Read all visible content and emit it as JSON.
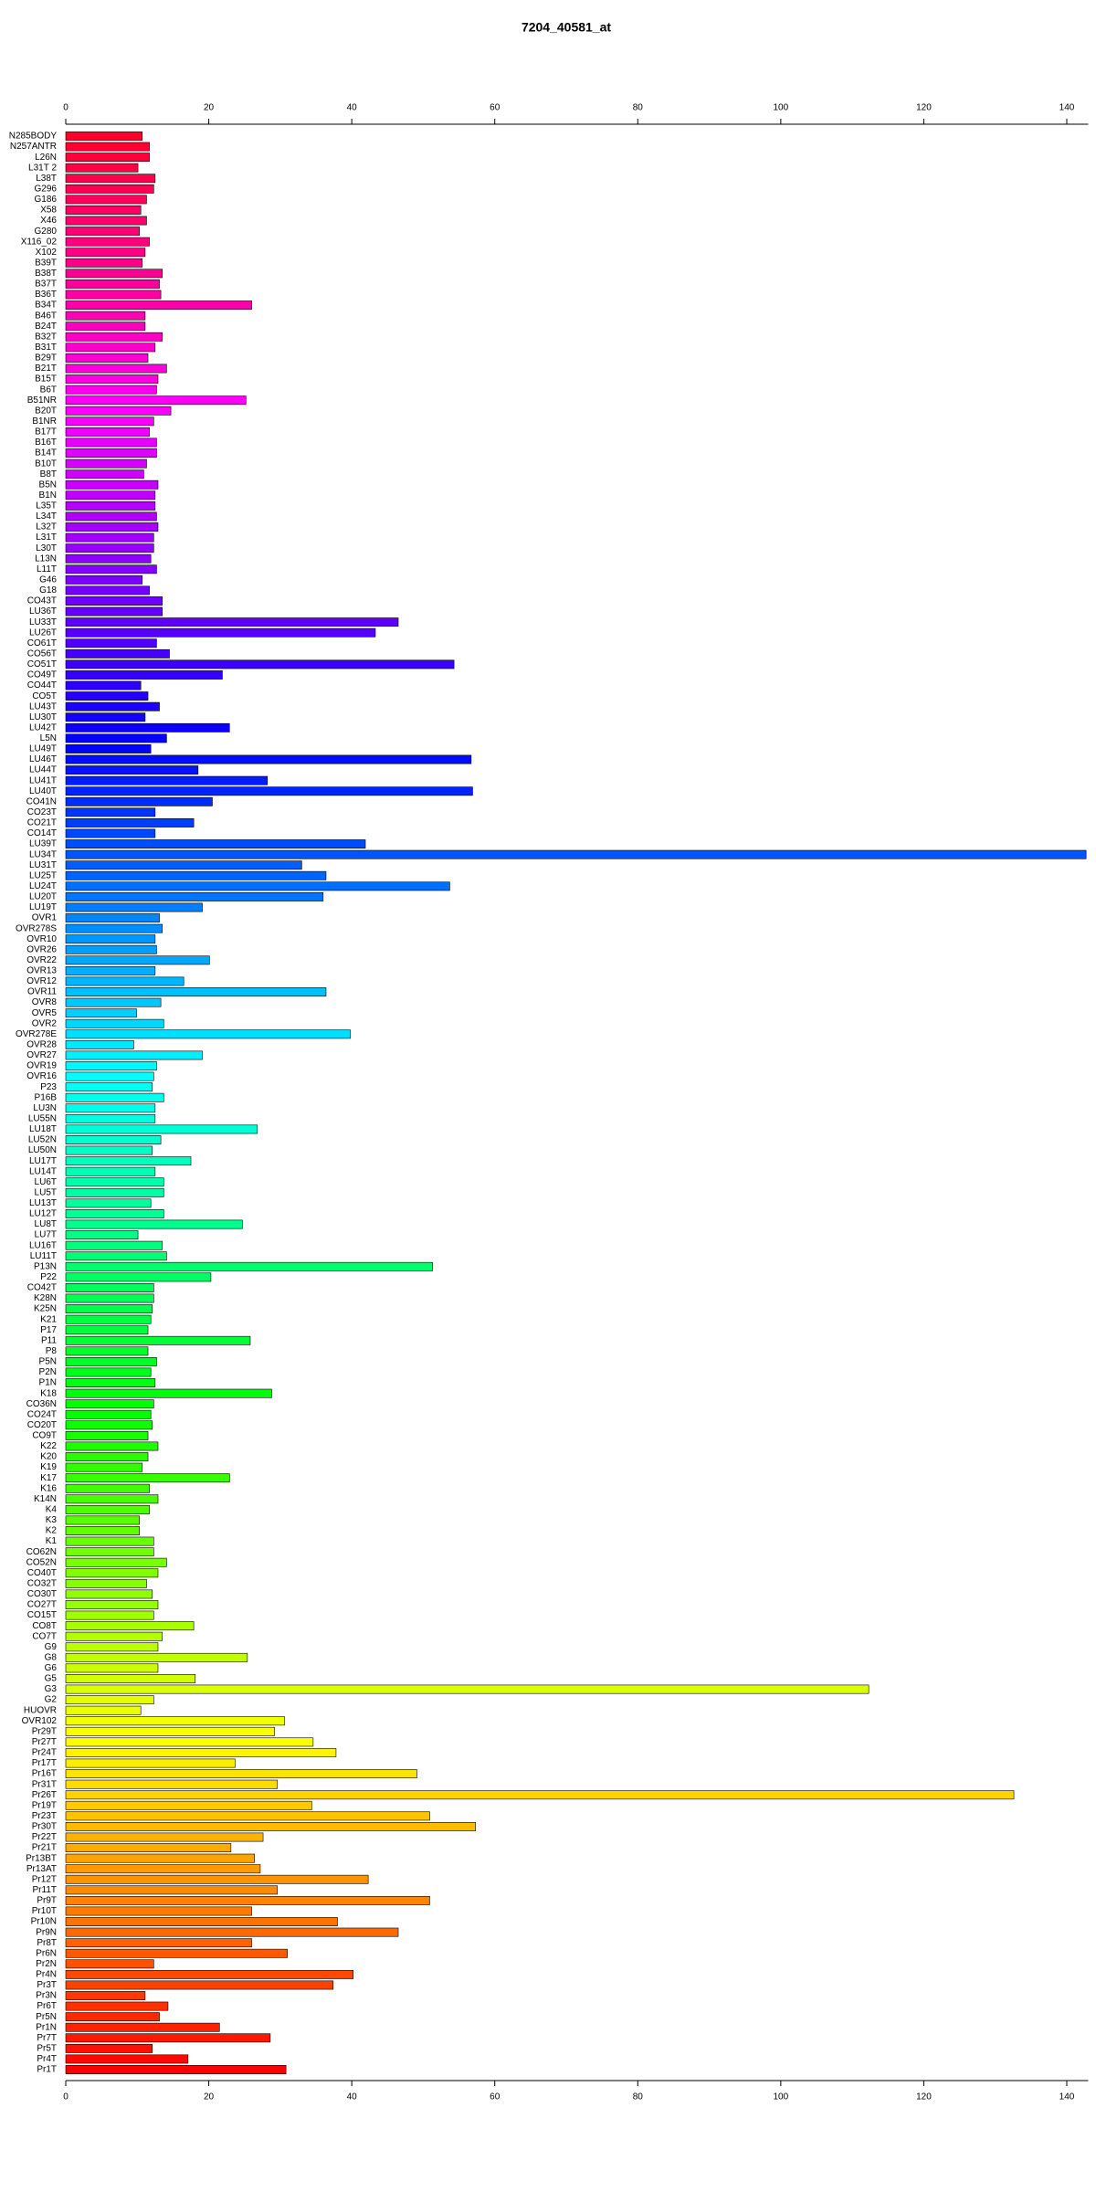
{
  "chart_data": {
    "type": "bar",
    "orientation": "horizontal",
    "title": "7204_40581_at",
    "categories": [
      "N285BODY",
      "N257ANTR",
      "L26N",
      "L31T 2",
      "L38T",
      "G296",
      "G186",
      "X58",
      "X46",
      "G280",
      "X116_02",
      "X102",
      "B39T",
      "B38T",
      "B37T",
      "B36T",
      "B34T",
      "B46T",
      "B24T",
      "B32T",
      "B31T",
      "B29T",
      "B21T",
      "B15T",
      "B6T",
      "B51NR",
      "B20T",
      "B1NR",
      "B17T",
      "B16T",
      "B14T",
      "B10T",
      "B8T",
      "B5N",
      "B1N",
      "L35T",
      "L34T",
      "L32T",
      "L31T",
      "L30T",
      "L13N",
      "L11T",
      "G46",
      "G18",
      "CO43T",
      "LU36T",
      "LU33T",
      "LU26T",
      "CO61T",
      "CO56T",
      "CO51T",
      "CO49T",
      "CO44T",
      "CO5T",
      "LU43T",
      "LU30T",
      "LU42T",
      "L5N",
      "LU49T",
      "LU46T",
      "LU44T",
      "LU41T",
      "LU40T",
      "CO41N",
      "CO23T",
      "CO21T",
      "CO14T",
      "LU39T",
      "LU34T",
      "LU31T",
      "LU25T",
      "LU24T",
      "LU20T",
      "LU19T",
      "OVR1",
      "OVR278S",
      "OVR10",
      "OVR26",
      "OVR22",
      "OVR13",
      "OVR12",
      "OVR11",
      "OVR8",
      "OVR5",
      "OVR2",
      "OVR278E",
      "OVR28",
      "OVR27",
      "OVR19",
      "OVR16",
      "P23",
      "P16B",
      "LU3N",
      "LU55N",
      "LU18T",
      "LU52N",
      "LU50N",
      "LU17T",
      "LU14T",
      "LU6T",
      "LU5T",
      "LU13T",
      "LU12T",
      "LU8T",
      "LU7T",
      "LU16T",
      "LU11T",
      "P13N",
      "P22",
      "CO42T",
      "K28N",
      "K25N",
      "K21",
      "P17",
      "P11",
      "P8",
      "P5N",
      "P2N",
      "P1N",
      "K18",
      "CO36N",
      "CO24T",
      "CO20T",
      "CO9T",
      "K22",
      "K20",
      "K19",
      "K17",
      "K16",
      "K14N",
      "K4",
      "K3",
      "K2",
      "K1",
      "CO62N",
      "CO52N",
      "CO40T",
      "CO32T",
      "CO30T",
      "CO27T",
      "CO15T",
      "CO8T",
      "CO7T",
      "G9",
      "G8",
      "G6",
      "G5",
      "G3",
      "G2",
      "HUOVR",
      "OVR102",
      "Pr29T",
      "Pr27T",
      "Pr24T",
      "Pr17T",
      "Pr16T",
      "Pr31T",
      "Pr26T",
      "Pr19T",
      "Pr23T",
      "Pr30T",
      "Pr22T",
      "Pr21T",
      "Pr13BT",
      "Pr13AT",
      "Pr12T",
      "Pr11T",
      "Pr9T",
      "Pr10T",
      "Pr10N",
      "Pr9N",
      "Pr8T",
      "Pr6N",
      "Pr2N",
      "Pr4N",
      "Pr3T",
      "Pr3N",
      "Pr6T",
      "Pr5N",
      "Pr1N",
      "Pr7T",
      "Pr5T",
      "Pr4T",
      "Pr1T"
    ],
    "values": [
      10.7,
      11.7,
      11.7,
      10.1,
      12.5,
      12.3,
      11.3,
      10.5,
      11.3,
      10.3,
      11.7,
      11.1,
      10.7,
      13.5,
      13.1,
      13.3,
      26,
      11.1,
      11.1,
      13.5,
      12.5,
      11.5,
      14.1,
      12.9,
      12.7,
      25.2,
      14.7,
      12.3,
      11.7,
      12.7,
      12.7,
      11.3,
      10.9,
      12.9,
      12.5,
      12.5,
      12.7,
      12.9,
      12.3,
      12.3,
      11.9,
      12.7,
      10.7,
      11.7,
      13.5,
      13.5,
      46.5,
      43.3,
      12.7,
      14.5,
      54.3,
      21.9,
      10.5,
      11.5,
      13.1,
      11.1,
      22.9,
      14.1,
      11.9,
      56.7,
      18.5,
      28.2,
      56.9,
      20.5,
      12.5,
      17.9,
      12.5,
      41.9,
      142.7,
      33,
      36.4,
      53.7,
      36,
      19.1,
      13.1,
      13.5,
      12.5,
      12.7,
      20.1,
      12.5,
      16.5,
      36.4,
      13.3,
      9.9,
      13.7,
      39.8,
      9.5,
      19.1,
      12.7,
      12.3,
      12.1,
      13.7,
      12.5,
      12.5,
      26.8,
      13.3,
      12.1,
      17.5,
      12.5,
      13.7,
      13.7,
      11.9,
      13.7,
      24.7,
      10.1,
      13.5,
      14.1,
      51.3,
      20.3,
      12.3,
      12.3,
      12.1,
      11.9,
      11.5,
      25.8,
      11.5,
      12.7,
      11.9,
      12.5,
      28.8,
      12.3,
      11.9,
      12.1,
      11.5,
      12.9,
      11.5,
      10.7,
      22.9,
      11.7,
      12.9,
      11.7,
      10.3,
      10.3,
      12.3,
      12.3,
      14.1,
      12.9,
      11.3,
      12.1,
      12.9,
      12.3,
      17.9,
      13.5,
      12.9,
      25.4,
      12.9,
      18.1,
      112.3,
      12.3,
      10.5,
      30.6,
      29.2,
      34.6,
      37.8,
      23.7,
      49.1,
      29.6,
      132.6,
      34.4,
      50.9,
      57.3,
      27.6,
      23.1,
      26.4,
      27.2,
      42.3,
      29.6,
      50.9,
      26,
      38,
      46.5,
      26,
      31,
      12.3,
      40.2,
      37.4,
      11.1,
      14.3,
      13.1,
      21.5,
      28.6,
      12.1,
      17.1,
      30.8
    ],
    "xlim": [
      0,
      143
    ],
    "xticks": [
      0,
      20,
      40,
      60,
      80,
      100,
      120,
      140
    ],
    "colormap": "rainbow",
    "x_axis_sides": [
      "top",
      "bottom"
    ]
  }
}
